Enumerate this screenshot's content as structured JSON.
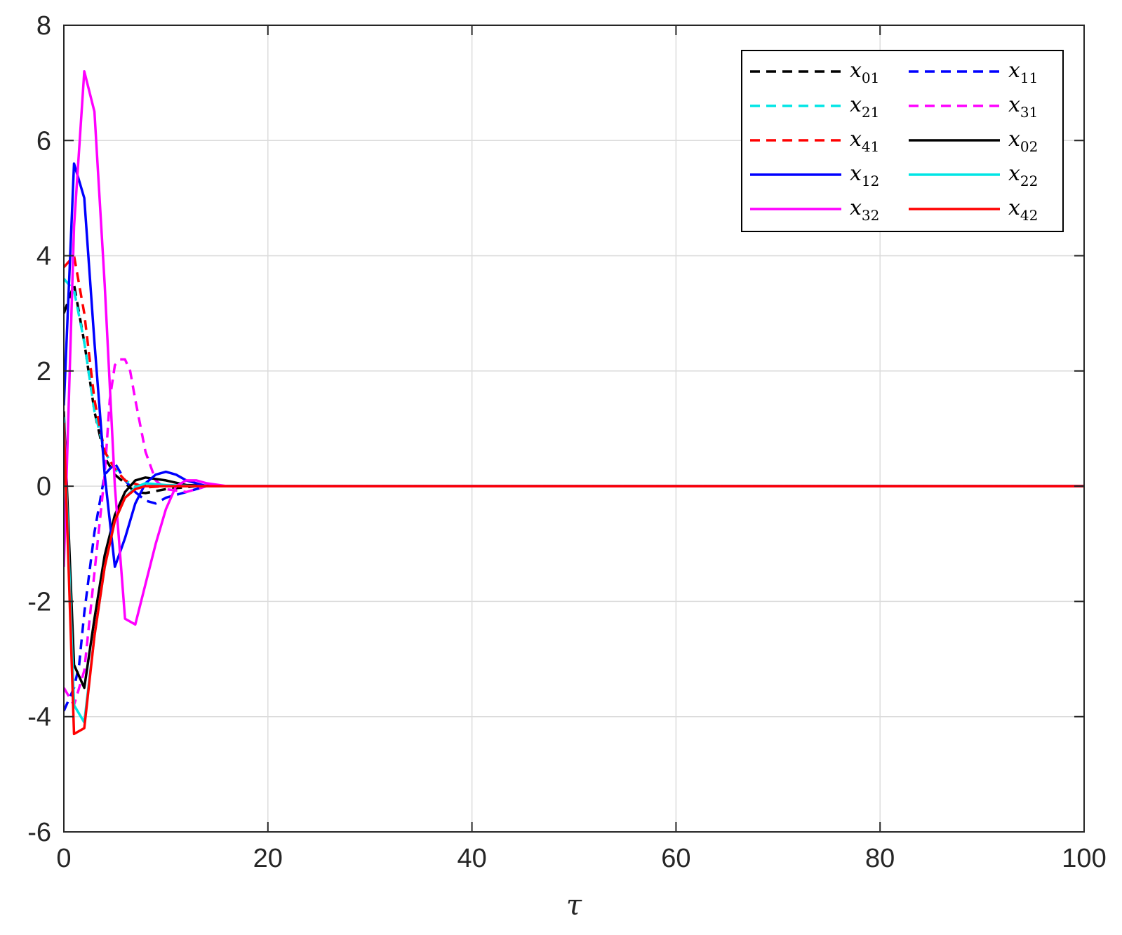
{
  "chart_data": {
    "type": "line",
    "title": "",
    "xlabel": "τ",
    "ylabel": "",
    "xlim": [
      0,
      100
    ],
    "ylim": [
      -6,
      8
    ],
    "xticks": [
      0,
      20,
      40,
      60,
      80,
      100
    ],
    "yticks": [
      -6,
      -4,
      -2,
      0,
      2,
      4,
      6,
      8
    ],
    "x_tick_labels": [
      "0",
      "20",
      "40",
      "60",
      "80",
      "100"
    ],
    "y_tick_labels": [
      "-6",
      "-4",
      "-2",
      "0",
      "2",
      "4",
      "6",
      "8"
    ],
    "grid": true,
    "legend_position": "top-right",
    "legend_columns": 2,
    "series": [
      {
        "name": "x01",
        "base": "x",
        "sub": "01",
        "color": "#000000",
        "style": "dashed",
        "points": [
          [
            0,
            3
          ],
          [
            1,
            3.5
          ],
          [
            2,
            2.5
          ],
          [
            3,
            1.3
          ],
          [
            4,
            0.5
          ],
          [
            5,
            0.2
          ],
          [
            6,
            0.05
          ],
          [
            7,
            -0.1
          ],
          [
            8,
            -0.12
          ],
          [
            10,
            -0.05
          ],
          [
            13,
            0
          ],
          [
            18,
            0
          ],
          [
            100,
            0
          ]
        ]
      },
      {
        "name": "x11",
        "base": "x",
        "sub": "11",
        "color": "#0000ff",
        "style": "dashed",
        "points": [
          [
            0,
            -3.9
          ],
          [
            1,
            -3.5
          ],
          [
            1.5,
            -3.1
          ],
          [
            2,
            -2.2
          ],
          [
            3,
            -0.8
          ],
          [
            4,
            0.2
          ],
          [
            5,
            0.4
          ],
          [
            6,
            0.1
          ],
          [
            7,
            -0.1
          ],
          [
            8,
            -0.25
          ],
          [
            9,
            -0.3
          ],
          [
            10,
            -0.2
          ],
          [
            12,
            -0.1
          ],
          [
            14,
            0
          ],
          [
            18,
            0
          ],
          [
            100,
            0
          ]
        ]
      },
      {
        "name": "x21",
        "base": "x",
        "sub": "21",
        "color": "#00e5e5",
        "style": "dashed",
        "points": [
          [
            0,
            3.6
          ],
          [
            1,
            3.4
          ],
          [
            2,
            2.5
          ],
          [
            3,
            1.3
          ],
          [
            4,
            0.6
          ],
          [
            5,
            0.3
          ],
          [
            6,
            0.1
          ],
          [
            7,
            0
          ],
          [
            9,
            0
          ],
          [
            18,
            0
          ],
          [
            100,
            0
          ]
        ]
      },
      {
        "name": "x31",
        "base": "x",
        "sub": "31",
        "color": "#ff00ff",
        "style": "dashed",
        "points": [
          [
            0,
            -3.5
          ],
          [
            1,
            -3.8
          ],
          [
            2,
            -3.2
          ],
          [
            3,
            -1.5
          ],
          [
            4,
            0.2
          ],
          [
            4.5,
            1.5
          ],
          [
            5,
            2.1
          ],
          [
            5.5,
            2.2
          ],
          [
            6,
            2.2
          ],
          [
            6.5,
            2.0
          ],
          [
            7,
            1.5
          ],
          [
            8,
            0.6
          ],
          [
            9,
            0.1
          ],
          [
            10,
            -0.05
          ],
          [
            12,
            -0.1
          ],
          [
            14,
            0
          ],
          [
            18,
            0
          ],
          [
            100,
            0
          ]
        ]
      },
      {
        "name": "x41",
        "base": "x",
        "sub": "41",
        "color": "#ff0000",
        "style": "dashed",
        "points": [
          [
            0,
            3.8
          ],
          [
            1,
            4.0
          ],
          [
            2,
            3.0
          ],
          [
            3,
            1.5
          ],
          [
            4,
            0.6
          ],
          [
            5,
            0.3
          ],
          [
            6,
            0.1
          ],
          [
            8,
            -0.02
          ],
          [
            10,
            0
          ],
          [
            18,
            0
          ],
          [
            100,
            0
          ]
        ]
      },
      {
        "name": "x02",
        "base": "x",
        "sub": "02",
        "color": "#000000",
        "style": "solid",
        "points": [
          [
            0,
            1.3
          ],
          [
            1,
            -3.1
          ],
          [
            2,
            -3.5
          ],
          [
            3,
            -2.3
          ],
          [
            4,
            -1.2
          ],
          [
            5,
            -0.5
          ],
          [
            6,
            -0.1
          ],
          [
            7,
            0.1
          ],
          [
            8,
            0.15
          ],
          [
            10,
            0.1
          ],
          [
            12,
            0.02
          ],
          [
            15,
            0
          ],
          [
            18,
            0
          ],
          [
            100,
            0
          ]
        ]
      },
      {
        "name": "x12",
        "base": "x",
        "sub": "12",
        "color": "#0000ff",
        "style": "solid",
        "points": [
          [
            0,
            1.4
          ],
          [
            0.5,
            3.5
          ],
          [
            1,
            5.6
          ],
          [
            2,
            5.0
          ],
          [
            3,
            2.5
          ],
          [
            4,
            0.2
          ],
          [
            5,
            -1.4
          ],
          [
            6,
            -0.9
          ],
          [
            7,
            -0.3
          ],
          [
            8,
            0.05
          ],
          [
            9,
            0.2
          ],
          [
            10,
            0.25
          ],
          [
            11,
            0.2
          ],
          [
            12,
            0.1
          ],
          [
            13,
            0.05
          ],
          [
            14,
            0
          ],
          [
            18,
            0
          ],
          [
            100,
            0
          ]
        ]
      },
      {
        "name": "x22",
        "base": "x",
        "sub": "22",
        "color": "#00e5e5",
        "style": "solid",
        "points": [
          [
            0,
            1.2
          ],
          [
            1,
            -3.8
          ],
          [
            2,
            -4.1
          ],
          [
            3,
            -2.6
          ],
          [
            4,
            -1.4
          ],
          [
            5,
            -0.6
          ],
          [
            6,
            -0.2
          ],
          [
            7,
            -0.02
          ],
          [
            8,
            0.05
          ],
          [
            10,
            0.02
          ],
          [
            13,
            0
          ],
          [
            18,
            0
          ],
          [
            100,
            0
          ]
        ]
      },
      {
        "name": "x32",
        "base": "x",
        "sub": "32",
        "color": "#ff00ff",
        "style": "solid",
        "points": [
          [
            0,
            -1.4
          ],
          [
            1,
            4.5
          ],
          [
            2,
            7.2
          ],
          [
            3,
            6.5
          ],
          [
            4,
            3.5
          ],
          [
            5,
            0
          ],
          [
            6,
            -2.3
          ],
          [
            7,
            -2.4
          ],
          [
            8,
            -1.7
          ],
          [
            9,
            -1.0
          ],
          [
            10,
            -0.4
          ],
          [
            11,
            0
          ],
          [
            12,
            0.1
          ],
          [
            13,
            0.1
          ],
          [
            14,
            0.05
          ],
          [
            16,
            0
          ],
          [
            18,
            0
          ],
          [
            100,
            0
          ]
        ]
      },
      {
        "name": "x42",
        "base": "x",
        "sub": "42",
        "color": "#ff0000",
        "style": "solid",
        "points": [
          [
            0,
            1.1
          ],
          [
            1,
            -4.3
          ],
          [
            2,
            -4.2
          ],
          [
            3,
            -2.6
          ],
          [
            4,
            -1.4
          ],
          [
            5,
            -0.6
          ],
          [
            6,
            -0.2
          ],
          [
            7,
            -0.05
          ],
          [
            8,
            0
          ],
          [
            10,
            0
          ],
          [
            18,
            0
          ],
          [
            100,
            0
          ]
        ]
      }
    ]
  }
}
